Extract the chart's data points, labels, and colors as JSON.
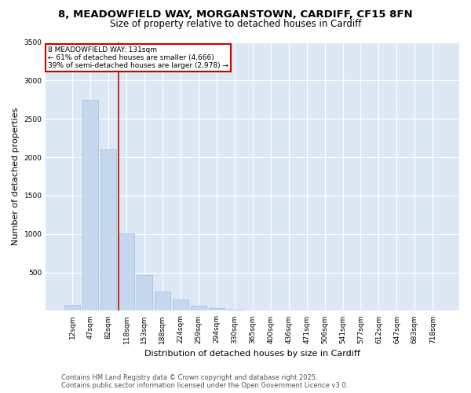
{
  "title_line1": "8, MEADOWFIELD WAY, MORGANSTOWN, CARDIFF, CF15 8FN",
  "title_line2": "Size of property relative to detached houses in Cardiff",
  "xlabel": "Distribution of detached houses by size in Cardiff",
  "ylabel": "Number of detached properties",
  "bar_labels": [
    "12sqm",
    "47sqm",
    "82sqm",
    "118sqm",
    "153sqm",
    "188sqm",
    "224sqm",
    "259sqm",
    "294sqm",
    "330sqm",
    "365sqm",
    "400sqm",
    "436sqm",
    "471sqm",
    "506sqm",
    "541sqm",
    "577sqm",
    "612sqm",
    "647sqm",
    "683sqm",
    "718sqm"
  ],
  "bar_values": [
    80,
    2750,
    2100,
    1010,
    460,
    245,
    145,
    65,
    30,
    15,
    8,
    4,
    3,
    2,
    1,
    1,
    1,
    0,
    0,
    0,
    0
  ],
  "bar_color": "#c5d8f0",
  "bar_edge_color": "#a0bedd",
  "vline_color": "#cc0000",
  "annotation_text": "8 MEADOWFIELD WAY: 131sqm\n← 61% of detached houses are smaller (4,666)\n39% of semi-detached houses are larger (2,978) →",
  "annotation_box_facecolor": "#ffffff",
  "annotation_box_edgecolor": "#cc0000",
  "ylim": [
    0,
    3500
  ],
  "yticks": [
    0,
    500,
    1000,
    1500,
    2000,
    2500,
    3000,
    3500
  ],
  "footer_line1": "Contains HM Land Registry data © Crown copyright and database right 2025.",
  "footer_line2": "Contains public sector information licensed under the Open Government Licence v3.0.",
  "fig_bg_color": "#ffffff",
  "plot_bg_color": "#dce9f5",
  "grid_color": "#ffffff",
  "title1_fontsize": 9.5,
  "title2_fontsize": 8.5,
  "axis_label_fontsize": 8,
  "tick_fontsize": 6.5,
  "footer_fontsize": 6,
  "annotation_fontsize": 6.5
}
